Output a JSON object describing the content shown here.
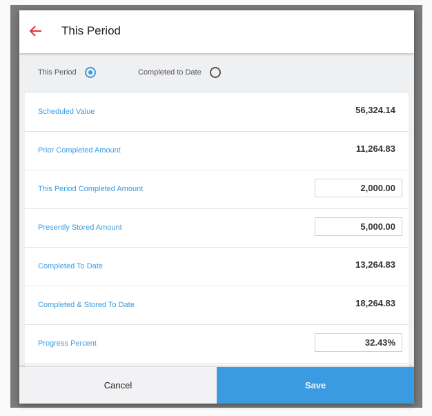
{
  "header": {
    "title": "This Period",
    "back_icon": "arrow-left-icon",
    "accent": "#e8303a"
  },
  "mode": {
    "options": [
      {
        "label": "This Period",
        "selected": true
      },
      {
        "label": "Completed to Date",
        "selected": false
      }
    ]
  },
  "fields": [
    {
      "label": "Scheduled Value",
      "value": "56,324.14",
      "editable": false
    },
    {
      "label": "Prior Completed Amount",
      "value": "11,264.83",
      "editable": false
    },
    {
      "label": "This Period Completed Amount",
      "value": "2,000.00",
      "editable": true
    },
    {
      "label": "Presently Stored Amount",
      "value": "5,000.00",
      "editable": true
    },
    {
      "label": "Completed To Date",
      "value": "13,264.83",
      "editable": false
    },
    {
      "label": "Completed & Stored To Date",
      "value": "18,264.83",
      "editable": false
    },
    {
      "label": "Progress Percent",
      "value": "32.43%",
      "editable": true
    }
  ],
  "footer": {
    "cancel_label": "Cancel",
    "save_label": "Save"
  },
  "colors": {
    "primary": "#3a9be0"
  }
}
